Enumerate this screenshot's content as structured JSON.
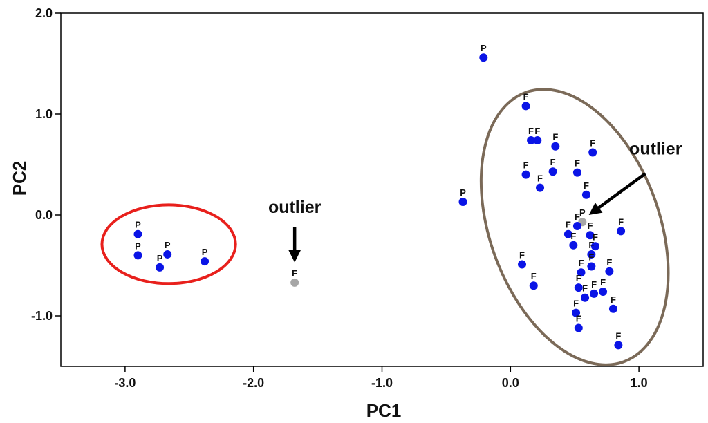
{
  "chart_data": {
    "type": "scatter",
    "xlabel": "PC1",
    "ylabel": "PC2",
    "xlim": [
      -3.5,
      1.5
    ],
    "ylim": [
      -1.5,
      2.0
    ],
    "xticks": [
      {
        "value": -3.0,
        "label": "-3.0"
      },
      {
        "value": -2.0,
        "label": "-2.0"
      },
      {
        "value": -1.0,
        "label": "-1.0"
      },
      {
        "value": 0.0,
        "label": "0.0"
      },
      {
        "value": 1.0,
        "label": "1.0"
      }
    ],
    "yticks": [
      {
        "value": 2.0,
        "label": "2.0"
      },
      {
        "value": 1.0,
        "label": "1.0"
      },
      {
        "value": 0.0,
        "label": "0.0"
      },
      {
        "value": -1.0,
        "label": "-1.0"
      }
    ],
    "grid": false,
    "colors": {
      "point": "#0a14e6",
      "outlier_point": "#a6a6a6",
      "p_ellipse": "#e8201c",
      "f_ellipse": "#7b6a58",
      "axis": "#000000"
    },
    "points": [
      {
        "x": -2.9,
        "y": -0.19,
        "label": "P"
      },
      {
        "x": -2.9,
        "y": -0.4,
        "label": "P"
      },
      {
        "x": -2.67,
        "y": -0.39,
        "label": "P"
      },
      {
        "x": -2.73,
        "y": -0.52,
        "label": "P"
      },
      {
        "x": -2.38,
        "y": -0.46,
        "label": "P"
      },
      {
        "x": -1.68,
        "y": -0.67,
        "label": "F",
        "outlier": true
      },
      {
        "x": -0.37,
        "y": 0.13,
        "label": "P"
      },
      {
        "x": -0.21,
        "y": 1.56,
        "label": "P"
      },
      {
        "x": 0.12,
        "y": 1.08,
        "label": "F"
      },
      {
        "x": 0.16,
        "y": 0.74,
        "label": "F"
      },
      {
        "x": 0.21,
        "y": 0.74,
        "label": "F"
      },
      {
        "x": 0.35,
        "y": 0.68,
        "label": "F"
      },
      {
        "x": 0.64,
        "y": 0.62,
        "label": "F"
      },
      {
        "x": 0.12,
        "y": 0.4,
        "label": "F"
      },
      {
        "x": 0.23,
        "y": 0.27,
        "label": "F"
      },
      {
        "x": 0.33,
        "y": 0.43,
        "label": "F"
      },
      {
        "x": 0.52,
        "y": 0.42,
        "label": "F"
      },
      {
        "x": 0.59,
        "y": 0.2,
        "label": "F"
      },
      {
        "x": 0.56,
        "y": -0.07,
        "label": "P",
        "outlier": true
      },
      {
        "x": 0.52,
        "y": -0.11,
        "label": "F"
      },
      {
        "x": 0.45,
        "y": -0.19,
        "label": "F"
      },
      {
        "x": 0.62,
        "y": -0.2,
        "label": "F"
      },
      {
        "x": 0.86,
        "y": -0.16,
        "label": "F"
      },
      {
        "x": 0.49,
        "y": -0.3,
        "label": "F"
      },
      {
        "x": 0.66,
        "y": -0.31,
        "label": "F"
      },
      {
        "x": 0.63,
        "y": -0.39,
        "label": "F"
      },
      {
        "x": 0.09,
        "y": -0.49,
        "label": "F"
      },
      {
        "x": 0.63,
        "y": -0.51,
        "label": "F"
      },
      {
        "x": 0.77,
        "y": -0.56,
        "label": "F"
      },
      {
        "x": 0.55,
        "y": -0.57,
        "label": "F"
      },
      {
        "x": 0.18,
        "y": -0.7,
        "label": "F"
      },
      {
        "x": 0.53,
        "y": -0.72,
        "label": "F"
      },
      {
        "x": 0.72,
        "y": -0.76,
        "label": "F"
      },
      {
        "x": 0.65,
        "y": -0.78,
        "label": "F"
      },
      {
        "x": 0.58,
        "y": -0.82,
        "label": "F"
      },
      {
        "x": 0.8,
        "y": -0.93,
        "label": "F"
      },
      {
        "x": 0.51,
        "y": -0.97,
        "label": "F"
      },
      {
        "x": 0.53,
        "y": -1.12,
        "label": "F"
      },
      {
        "x": 0.84,
        "y": -1.29,
        "label": "F"
      }
    ],
    "annotations": [
      {
        "text": "outlier",
        "text_at": {
          "x": -1.68,
          "y": 0.02
        },
        "arrow_from": {
          "x": -1.68,
          "y": -0.12
        },
        "arrow_to": {
          "x": -1.68,
          "y": -0.47
        }
      },
      {
        "text": "outlier",
        "text_at": {
          "x": 1.13,
          "y": 0.6
        },
        "arrow_from": {
          "x": 1.05,
          "y": 0.41
        },
        "arrow_to": {
          "x": 0.61,
          "y": 0.0
        }
      }
    ],
    "ellipses": [
      {
        "group": "P",
        "cx": -2.66,
        "cy": -0.29,
        "rx": 0.52,
        "ry": 0.39,
        "rotate": 0,
        "color": "#e8201c"
      },
      {
        "group": "F",
        "cx": 0.5,
        "cy": -0.12,
        "rx": 0.66,
        "ry": 1.42,
        "rotate": -20,
        "color": "#7b6a58"
      }
    ]
  }
}
